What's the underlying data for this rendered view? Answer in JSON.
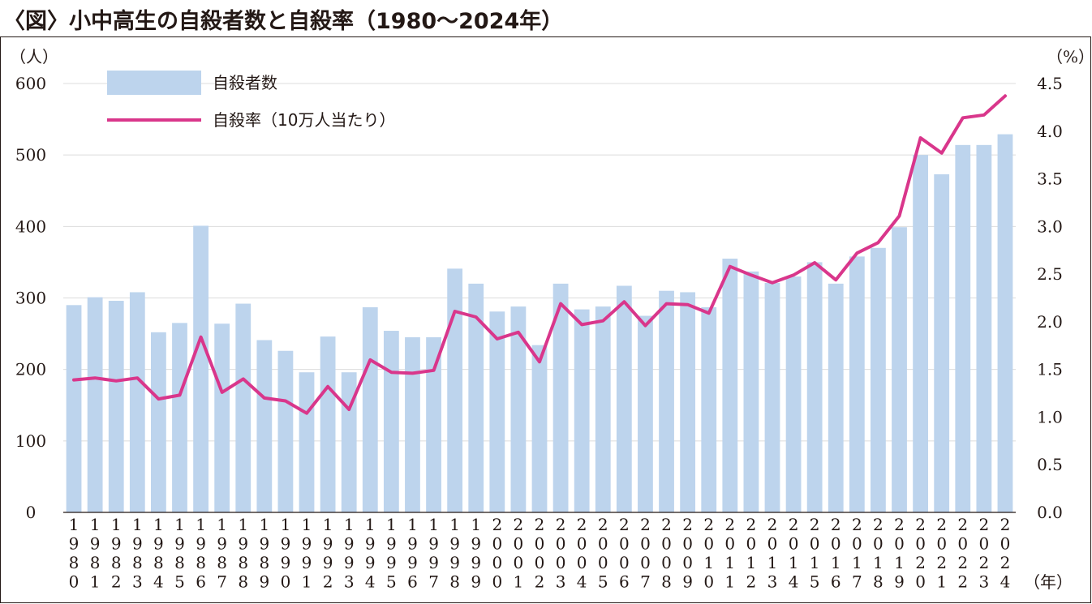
{
  "title": "〈図〉小中高生の自殺者数と自殺率（1980〜2024年）",
  "chart_data": {
    "type": "bar+line",
    "y_left_unit": "（人）",
    "y_right_unit": "（%）",
    "x_unit": "（年）",
    "y_left_range": [
      0,
      600
    ],
    "y_left_ticks": [
      "0",
      "100",
      "200",
      "300",
      "400",
      "500",
      "600"
    ],
    "y_right_range": [
      0,
      4.5
    ],
    "y_right_ticks": [
      "0.0",
      "0.5",
      "1.0",
      "1.5",
      "2.0",
      "2.5",
      "3.0",
      "3.5",
      "4.0",
      "4.5"
    ],
    "grid": "horizontal",
    "legend_placement": "top-left",
    "categories": [
      "1980",
      "1981",
      "1982",
      "1983",
      "1984",
      "1985",
      "1986",
      "1987",
      "1988",
      "1989",
      "1990",
      "1991",
      "1992",
      "1993",
      "1994",
      "1995",
      "1996",
      "1997",
      "1998",
      "1999",
      "2000",
      "2001",
      "2002",
      "2003",
      "2004",
      "2005",
      "2006",
      "2007",
      "2008",
      "2009",
      "2010",
      "2011",
      "2012",
      "2013",
      "2014",
      "2015",
      "2016",
      "2017",
      "2018",
      "2019",
      "2020",
      "2021",
      "2022",
      "2023",
      "2024"
    ],
    "series": [
      {
        "name": "自殺者数",
        "type": "bar",
        "axis": "left",
        "color": "#bdd4ed",
        "values": [
          290,
          301,
          296,
          308,
          252,
          265,
          401,
          264,
          292,
          241,
          226,
          196,
          246,
          196,
          287,
          254,
          245,
          245,
          341,
          320,
          281,
          288,
          234,
          320,
          284,
          288,
          317,
          275,
          310,
          308,
          287,
          355,
          337,
          321,
          330,
          350,
          320,
          358,
          370,
          399,
          500,
          473,
          514,
          514,
          529
        ]
      },
      {
        "name": "自殺率（10万人当たり）",
        "type": "line",
        "axis": "right",
        "color": "#d9368b",
        "values": [
          1.39,
          1.41,
          1.38,
          1.41,
          1.19,
          1.23,
          1.84,
          1.26,
          1.4,
          1.2,
          1.17,
          1.04,
          1.32,
          1.08,
          1.6,
          1.47,
          1.46,
          1.49,
          2.11,
          2.05,
          1.82,
          1.89,
          1.58,
          2.19,
          1.97,
          2.01,
          2.21,
          1.96,
          2.19,
          2.18,
          2.09,
          2.58,
          2.49,
          2.41,
          2.49,
          2.62,
          2.44,
          2.72,
          2.83,
          3.11,
          3.93,
          3.77,
          4.14,
          4.17,
          4.37
        ]
      }
    ]
  }
}
